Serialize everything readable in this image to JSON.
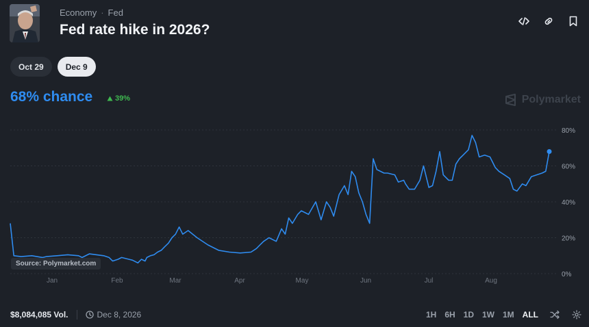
{
  "header": {
    "breadcrumb": [
      "Economy",
      "Fed"
    ],
    "title": "Fed rate hike in 2026?",
    "actions": [
      "code-icon",
      "link-icon",
      "bookmark-icon"
    ]
  },
  "date_pills": [
    {
      "label": "Oct 29",
      "selected": false
    },
    {
      "label": "Dec 9",
      "selected": true
    }
  ],
  "probability": {
    "value_text": "68% chance",
    "change_text": "39%",
    "change_direction": "up",
    "color": "#2f8cf0",
    "change_color": "#3fb950"
  },
  "brand": {
    "name": "Polymarket"
  },
  "source_label": "Source: Polymarket.com",
  "footer": {
    "volume": "$8,084,085 Vol.",
    "date": "Dec 8, 2026",
    "ranges": [
      "1H",
      "6H",
      "1D",
      "1W",
      "1M",
      "ALL"
    ],
    "active_range": "ALL"
  },
  "chart_data": {
    "type": "line",
    "x_tick_labels": [
      "Jan",
      "Feb",
      "Mar",
      "Apr",
      "May",
      "Jun",
      "Jul",
      "Aug"
    ],
    "y_tick_labels": [
      "80%",
      "60%",
      "40%",
      "20%",
      "0%"
    ],
    "ylim": [
      0,
      80
    ],
    "grid": true,
    "line_color": "#2f8cf0",
    "series": [
      {
        "values": [
          [
            0.0,
            28
          ],
          [
            0.1,
            10
          ],
          [
            0.3,
            9.5
          ],
          [
            0.6,
            10
          ],
          [
            0.9,
            9
          ],
          [
            1.0,
            9.5
          ],
          [
            1.3,
            10
          ],
          [
            1.6,
            10.5
          ],
          [
            1.9,
            10
          ],
          [
            2.0,
            9
          ],
          [
            2.2,
            11
          ],
          [
            2.4,
            10.5
          ],
          [
            2.6,
            10
          ],
          [
            2.75,
            9
          ],
          [
            2.85,
            7
          ],
          [
            3.0,
            8
          ],
          [
            3.1,
            9
          ],
          [
            3.3,
            8
          ],
          [
            3.4,
            7.5
          ],
          [
            3.55,
            6
          ],
          [
            3.65,
            8
          ],
          [
            3.75,
            7
          ],
          [
            3.8,
            9
          ],
          [
            3.9,
            10
          ],
          [
            4.0,
            10.5
          ],
          [
            4.1,
            12
          ],
          [
            4.2,
            13
          ],
          [
            4.3,
            15
          ],
          [
            4.4,
            17
          ],
          [
            4.5,
            20
          ],
          [
            4.6,
            22
          ],
          [
            4.7,
            26
          ],
          [
            4.8,
            22
          ],
          [
            4.95,
            24
          ],
          [
            5.2,
            20
          ],
          [
            5.5,
            16
          ],
          [
            5.8,
            13
          ],
          [
            6.1,
            12
          ],
          [
            6.4,
            11.5
          ],
          [
            6.7,
            12
          ],
          [
            6.85,
            14
          ],
          [
            6.95,
            16
          ],
          [
            7.05,
            18
          ],
          [
            7.2,
            20
          ],
          [
            7.4,
            18
          ],
          [
            7.55,
            25
          ],
          [
            7.65,
            22
          ],
          [
            7.75,
            31
          ],
          [
            7.85,
            28
          ],
          [
            8.0,
            33
          ],
          [
            8.1,
            35
          ],
          [
            8.3,
            33
          ],
          [
            8.5,
            40
          ],
          [
            8.65,
            30
          ],
          [
            8.8,
            40
          ],
          [
            8.9,
            37
          ],
          [
            9.0,
            32
          ],
          [
            9.15,
            44
          ],
          [
            9.3,
            49
          ],
          [
            9.4,
            44
          ],
          [
            9.5,
            57
          ],
          [
            9.6,
            54
          ],
          [
            9.7,
            45
          ],
          [
            9.8,
            40
          ],
          [
            9.9,
            33
          ],
          [
            10.0,
            28
          ],
          [
            10.1,
            64
          ],
          [
            10.2,
            58
          ],
          [
            10.3,
            57
          ],
          [
            10.4,
            56
          ],
          [
            10.5,
            56
          ],
          [
            10.7,
            55
          ],
          [
            10.8,
            51
          ],
          [
            10.95,
            52
          ],
          [
            11.0,
            50
          ],
          [
            11.1,
            47
          ],
          [
            11.25,
            47
          ],
          [
            11.4,
            52
          ],
          [
            11.5,
            60
          ],
          [
            11.65,
            48
          ],
          [
            11.75,
            49
          ],
          [
            11.85,
            57
          ],
          [
            11.95,
            68
          ],
          [
            12.05,
            55
          ],
          [
            12.2,
            52
          ],
          [
            12.3,
            52
          ],
          [
            12.4,
            61
          ],
          [
            12.5,
            64
          ],
          [
            12.6,
            66
          ],
          [
            12.75,
            69
          ],
          [
            12.85,
            77
          ],
          [
            12.95,
            73
          ],
          [
            13.05,
            65
          ],
          [
            13.2,
            66
          ],
          [
            13.35,
            65
          ],
          [
            13.5,
            59
          ],
          [
            13.6,
            57
          ],
          [
            13.75,
            55
          ],
          [
            13.9,
            53
          ],
          [
            14.0,
            47
          ],
          [
            14.1,
            46
          ],
          [
            14.25,
            50
          ],
          [
            14.35,
            49
          ],
          [
            14.5,
            54
          ],
          [
            14.65,
            55
          ],
          [
            14.8,
            56
          ],
          [
            14.9,
            57
          ],
          [
            15.0,
            68
          ]
        ]
      }
    ]
  }
}
